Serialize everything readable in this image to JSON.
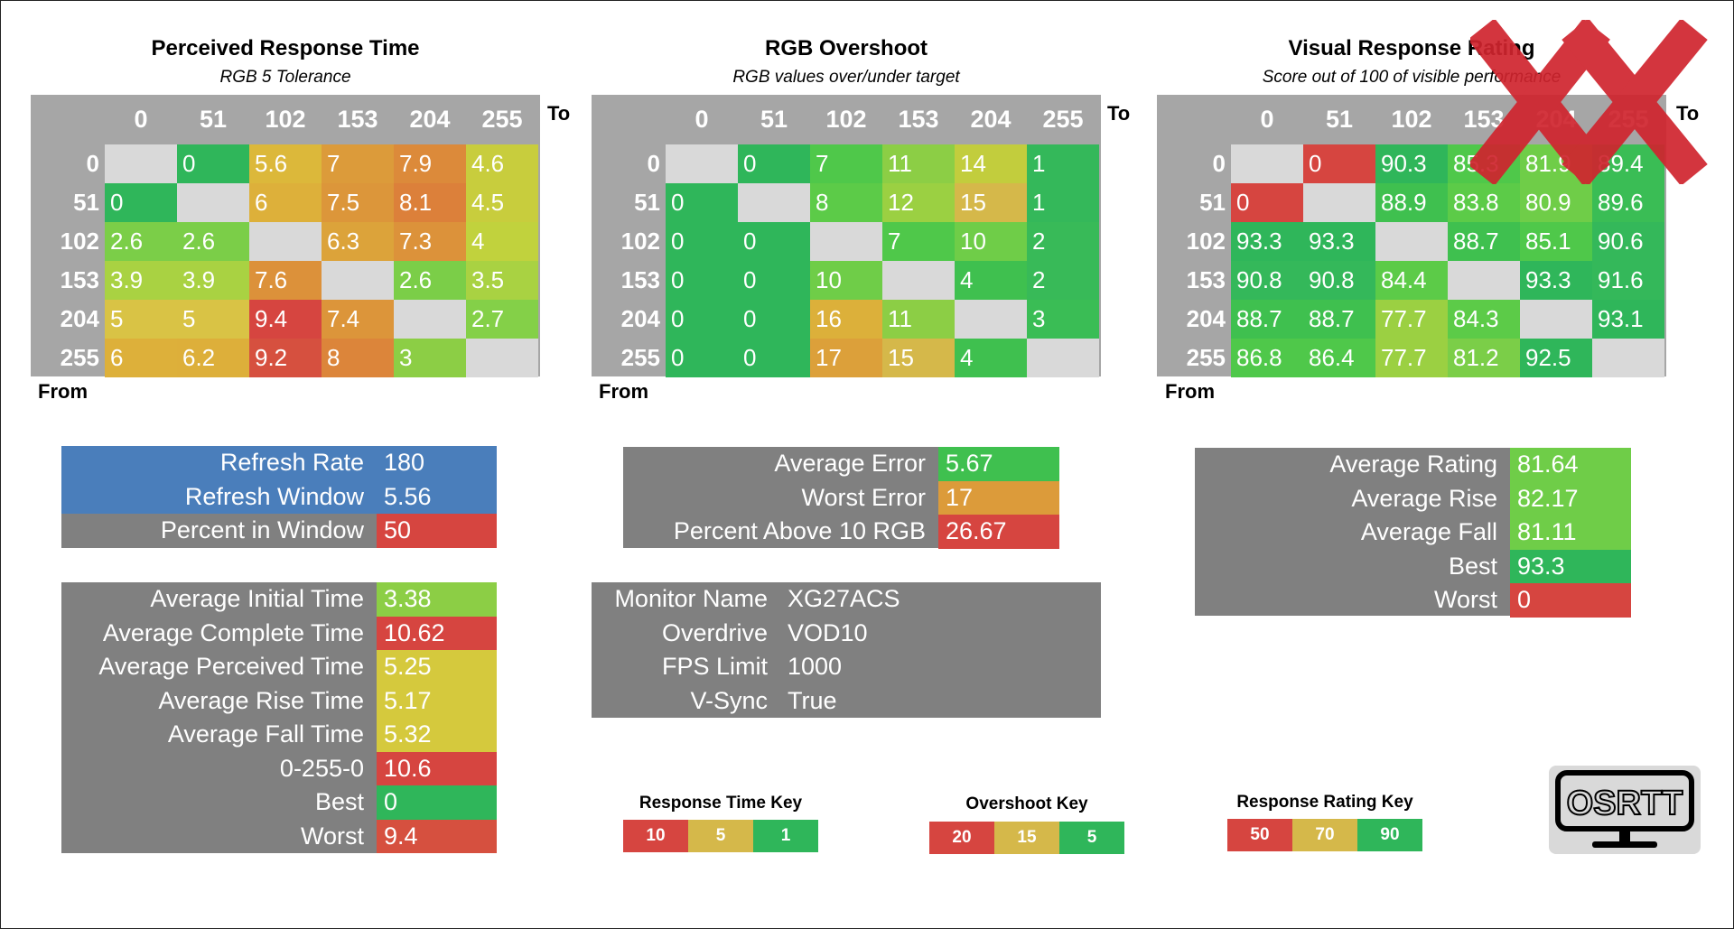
{
  "colors": {
    "header_gray": "#a6a6a6",
    "diag": "#d9d9d9",
    "stat_gray": "#808080",
    "blue": "#4a7ebb",
    "logo_bg": "#d9d9d9",
    "x_red": "#d0242e"
  },
  "chart_data": [
    {
      "type": "heatmap",
      "title": "Perceived Response Time",
      "subtitle": "RGB 5 Tolerance",
      "xlabel": "To",
      "ylabel": "From",
      "x": [
        "0",
        "51",
        "102",
        "153",
        "204",
        "255"
      ],
      "y": [
        "0",
        "51",
        "102",
        "153",
        "204",
        "255"
      ],
      "values": [
        [
          null,
          "0",
          "5.6",
          "7",
          "7.9",
          "4.6"
        ],
        [
          "0",
          null,
          "6",
          "7.5",
          "8.1",
          "4.5"
        ],
        [
          "2.6",
          "2.6",
          null,
          "6.3",
          "7.3",
          "4"
        ],
        [
          "3.9",
          "3.9",
          "7.6",
          null,
          "2.6",
          "3.5"
        ],
        [
          "5",
          "5",
          "9.4",
          "7.4",
          null,
          "2.7"
        ],
        [
          "6",
          "6.2",
          "9.2",
          "8",
          "3",
          null
        ]
      ],
      "colors": [
        [
          null,
          "#2fb65a",
          "#dcb83a",
          "#dc9b3a",
          "#dc8a3a",
          "#c8cd3d"
        ],
        [
          "#2fb65a",
          null,
          "#ddb03a",
          "#dc963a",
          "#dc803a",
          "#c8cd3d"
        ],
        [
          "#7bce48",
          "#7bce48",
          null,
          "#dca33a",
          "#dc923a",
          "#c1d23d"
        ],
        [
          "#a9d242",
          "#a9d242",
          "#dc913a",
          null,
          "#7bce48",
          "#a9d242"
        ],
        [
          "#d9c345",
          "#d9c345",
          "#d64540",
          "#dc953a",
          null,
          "#84d048"
        ],
        [
          "#ddb03a",
          "#ddaf3a",
          "#d6503f",
          "#dc853a",
          "#8cce45",
          null
        ]
      ]
    },
    {
      "type": "heatmap",
      "title": "RGB Overshoot",
      "subtitle": "RGB values over/under target",
      "xlabel": "To",
      "ylabel": "From",
      "x": [
        "0",
        "51",
        "102",
        "153",
        "204",
        "255"
      ],
      "y": [
        "0",
        "51",
        "102",
        "153",
        "204",
        "255"
      ],
      "values": [
        [
          null,
          "0",
          "7",
          "11",
          "14",
          "1"
        ],
        [
          "0",
          null,
          "8",
          "12",
          "15",
          "1"
        ],
        [
          "0",
          "0",
          null,
          "7",
          "10",
          "2"
        ],
        [
          "0",
          "0",
          "10",
          null,
          "4",
          "2"
        ],
        [
          "0",
          "0",
          "16",
          "11",
          null,
          "3"
        ],
        [
          "0",
          "0",
          "17",
          "15",
          "4",
          null
        ]
      ],
      "colors": [
        [
          null,
          "#2fb65a",
          "#4fc84a",
          "#8cce45",
          "#c2cd3d",
          "#34b85a"
        ],
        [
          "#2fb65a",
          null,
          "#5ccb48",
          "#9bd042",
          "#d5b84a",
          "#34b85a"
        ],
        [
          "#2fb65a",
          "#2fb65a",
          null,
          "#4fc84a",
          "#6fcd48",
          "#38ba58"
        ],
        [
          "#2fb65a",
          "#2fb65a",
          "#6fcd48",
          null,
          "#3fc04f",
          "#38ba58"
        ],
        [
          "#2fb65a",
          "#2fb65a",
          "#dcb03a",
          "#8cce45",
          null,
          "#3abd55"
        ],
        [
          "#2fb65a",
          "#2fb65a",
          "#dca03a",
          "#d5b84a",
          "#3fc04f",
          null
        ]
      ]
    },
    {
      "type": "heatmap",
      "title": "Visual Response Rating",
      "subtitle": "Score out of 100 of visible performance",
      "xlabel": "To",
      "ylabel": "From",
      "x": [
        "0",
        "51",
        "102",
        "153",
        "204",
        "255"
      ],
      "y": [
        "0",
        "51",
        "102",
        "153",
        "204",
        "255"
      ],
      "values": [
        [
          null,
          "0",
          "90.3",
          "85.3",
          "81.9",
          "89.4"
        ],
        [
          "0",
          null,
          "88.9",
          "83.8",
          "80.9",
          "89.6"
        ],
        [
          "93.3",
          "93.3",
          null,
          "88.7",
          "85.1",
          "90.6"
        ],
        [
          "90.8",
          "90.8",
          "84.4",
          null,
          "93.3",
          "91.6"
        ],
        [
          "88.7",
          "88.7",
          "77.7",
          "84.3",
          null,
          "93.1"
        ],
        [
          "86.8",
          "86.4",
          "77.7",
          "81.2",
          "92.5",
          null
        ]
      ],
      "colors": [
        [
          null,
          "#d64540",
          "#2fb65a",
          "#4fc84a",
          "#6fcd48",
          "#3abd55"
        ],
        [
          "#d64540",
          null,
          "#3fc04f",
          "#5ccb48",
          "#6fcd48",
          "#3abd55"
        ],
        [
          "#2fb65a",
          "#2fb65a",
          null,
          "#3fc04f",
          "#4fc84a",
          "#34b85a"
        ],
        [
          "#34b85a",
          "#34b85a",
          "#5ccb48",
          null,
          "#2fb65a",
          "#34b85a"
        ],
        [
          "#3fc04f",
          "#3fc04f",
          "#9bd042",
          "#5ccb48",
          null,
          "#2fb65a"
        ],
        [
          "#4fc84a",
          "#4fc84a",
          "#9bd042",
          "#7bce48",
          "#2fb65a",
          null
        ]
      ]
    }
  ],
  "refresh_box": {
    "rows": [
      {
        "label": "Refresh Rate",
        "value": "180",
        "label_bg": "#4a7ebb",
        "value_bg": "#4a7ebb"
      },
      {
        "label": "Refresh Window",
        "value": "5.56",
        "label_bg": "#4a7ebb",
        "value_bg": "#4a7ebb"
      },
      {
        "label": "Percent in Window",
        "value": "50",
        "label_bg": "#808080",
        "value_bg": "#d64540"
      }
    ]
  },
  "time_box": {
    "rows": [
      {
        "label": "Average Initial Time",
        "value": "3.38",
        "value_bg": "#8cce45"
      },
      {
        "label": "Average Complete Time",
        "value": "10.62",
        "value_bg": "#d64540"
      },
      {
        "label": "Average Perceived Time",
        "value": "5.25",
        "value_bg": "#d5c93d"
      },
      {
        "label": "Average Rise Time",
        "value": "5.17",
        "value_bg": "#d5c93d"
      },
      {
        "label": "Average Fall Time",
        "value": "5.32",
        "value_bg": "#d5c93d"
      },
      {
        "label": "0-255-0",
        "value": "10.6",
        "value_bg": "#d64540"
      },
      {
        "label": "Best",
        "value": "0",
        "value_bg": "#2fb65a"
      },
      {
        "label": "Worst",
        "value": "9.4",
        "value_bg": "#d6503f"
      }
    ]
  },
  "error_box": {
    "rows": [
      {
        "label": "Average Error",
        "value": "5.67",
        "value_bg": "#3fc04f"
      },
      {
        "label": "Worst Error",
        "value": "17",
        "value_bg": "#dc9b3a"
      },
      {
        "label": "Percent Above 10 RGB",
        "value": "26.67",
        "value_bg": "#d64540"
      }
    ]
  },
  "monitor_box": {
    "rows": [
      {
        "label": "Monitor Name",
        "value": "XG27ACS"
      },
      {
        "label": "Overdrive",
        "value": "VOD10"
      },
      {
        "label": "FPS Limit",
        "value": "1000"
      },
      {
        "label": "V-Sync",
        "value": "True"
      }
    ]
  },
  "rating_box": {
    "rows": [
      {
        "label": "Average Rating",
        "value": "81.64",
        "value_bg": "#6fcd48"
      },
      {
        "label": "Average Rise",
        "value": "82.17",
        "value_bg": "#6fcd48"
      },
      {
        "label": "Average Fall",
        "value": "81.11",
        "value_bg": "#6fcd48"
      },
      {
        "label": "Best",
        "value": "93.3",
        "value_bg": "#2fb65a"
      },
      {
        "label": "Worst",
        "value": "0",
        "value_bg": "#d64540"
      }
    ]
  },
  "keys": [
    {
      "title": "Response Time Key",
      "items": [
        {
          "label": "10",
          "color": "#d64540"
        },
        {
          "label": "5",
          "color": "#d5b84a"
        },
        {
          "label": "1",
          "color": "#2fb65a"
        }
      ]
    },
    {
      "title": "Overshoot Key",
      "items": [
        {
          "label": "20",
          "color": "#d64540"
        },
        {
          "label": "15",
          "color": "#d5b84a"
        },
        {
          "label": "5",
          "color": "#2fb65a"
        }
      ]
    },
    {
      "title": "Response Rating Key",
      "items": [
        {
          "label": "50",
          "color": "#d64540"
        },
        {
          "label": "70",
          "color": "#d5b84a"
        },
        {
          "label": "90",
          "color": "#2fb65a"
        }
      ]
    }
  ],
  "logo": {
    "text": "OSRTT",
    "icon": "monitor-icon"
  },
  "watermark": {
    "icon": "double-x-icon"
  }
}
